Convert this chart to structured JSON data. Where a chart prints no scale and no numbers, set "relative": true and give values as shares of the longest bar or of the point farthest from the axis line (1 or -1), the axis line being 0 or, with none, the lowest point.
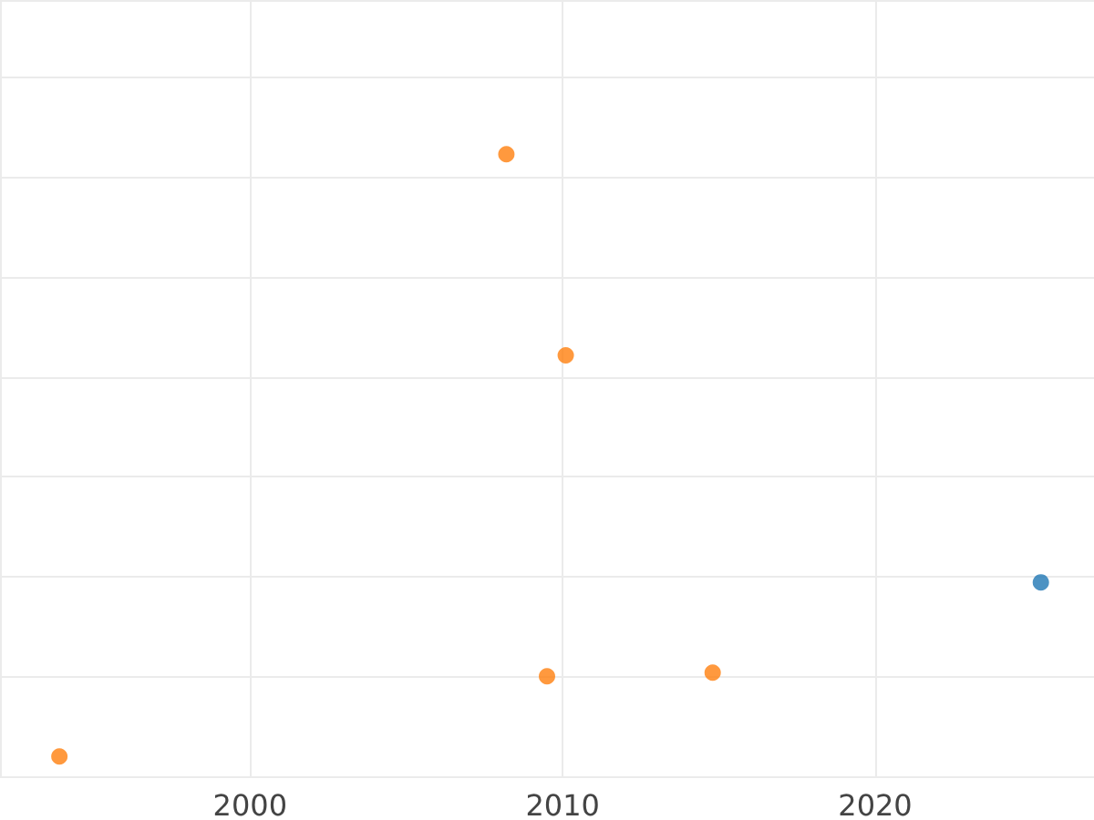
{
  "chart_data": {
    "type": "scatter",
    "relative": true,
    "xlim": [
      1992,
      2027
    ],
    "xticks": [
      2000,
      2010,
      2020
    ],
    "grid": true,
    "marker": "circle",
    "series": [
      {
        "color": "#ff7f0e",
        "x": [
          1993.9,
          2008.2,
          2010.1,
          2009.5,
          2014.8
        ],
        "values": [
          0,
          1,
          0.666,
          0.133,
          0.139
        ]
      },
      {
        "color": "#1f77b4",
        "x": [
          2025.3
        ],
        "values": [
          0.289
        ]
      }
    ]
  }
}
